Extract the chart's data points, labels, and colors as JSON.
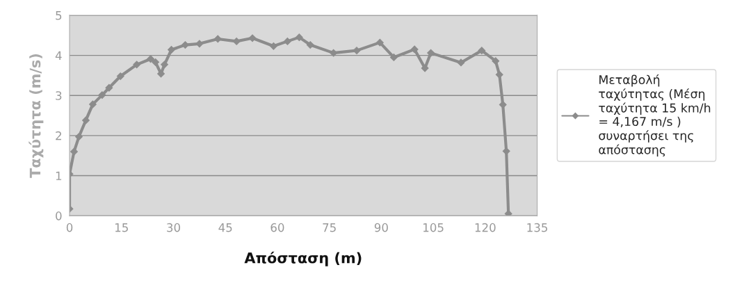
{
  "chart_data": {
    "type": "line",
    "xlabel": "Απόσταση (m)",
    "ylabel": "Ταχύτητα (m/s)",
    "xlim": [
      0,
      135
    ],
    "xticks": [
      0,
      15,
      30,
      45,
      60,
      75,
      90,
      105,
      120,
      135
    ],
    "ylim": [
      0,
      5
    ],
    "yticks": [
      0,
      1,
      2,
      3,
      4,
      5
    ],
    "grid": "y",
    "legend": "right",
    "marker": "diamond",
    "line_style": "solid",
    "series": [
      {
        "name": "Μεταβολή ταχύτητας (Μέση ταχύτητα 15 km/h = 4,167 m/s ) συναρτήσει της απόστασης",
        "color": "#8c8c8c",
        "x": [
          0,
          0,
          1.3,
          2.7,
          4.7,
          6.7,
          9.4,
          11.4,
          14.7,
          19.4,
          23.4,
          24.8,
          26.4,
          27.4,
          29.4,
          33.4,
          37.5,
          42.8,
          48.2,
          52.8,
          58.9,
          62.9,
          66.3,
          69.5,
          76.2,
          82.9,
          89.6,
          93.6,
          99.6,
          102.6,
          104.3,
          113.0,
          119.0,
          123.0,
          124.1,
          125.1,
          126.1,
          126.7
        ],
        "values": [
          0.17,
          1.04,
          1.6,
          1.97,
          2.38,
          2.78,
          3.01,
          3.19,
          3.48,
          3.77,
          3.91,
          3.83,
          3.54,
          3.77,
          4.14,
          4.26,
          4.29,
          4.41,
          4.35,
          4.43,
          4.23,
          4.35,
          4.45,
          4.26,
          4.06,
          4.12,
          4.32,
          3.95,
          4.15,
          3.68,
          4.06,
          3.82,
          4.12,
          3.86,
          3.52,
          2.77,
          1.61,
          0.05
        ]
      }
    ]
  }
}
